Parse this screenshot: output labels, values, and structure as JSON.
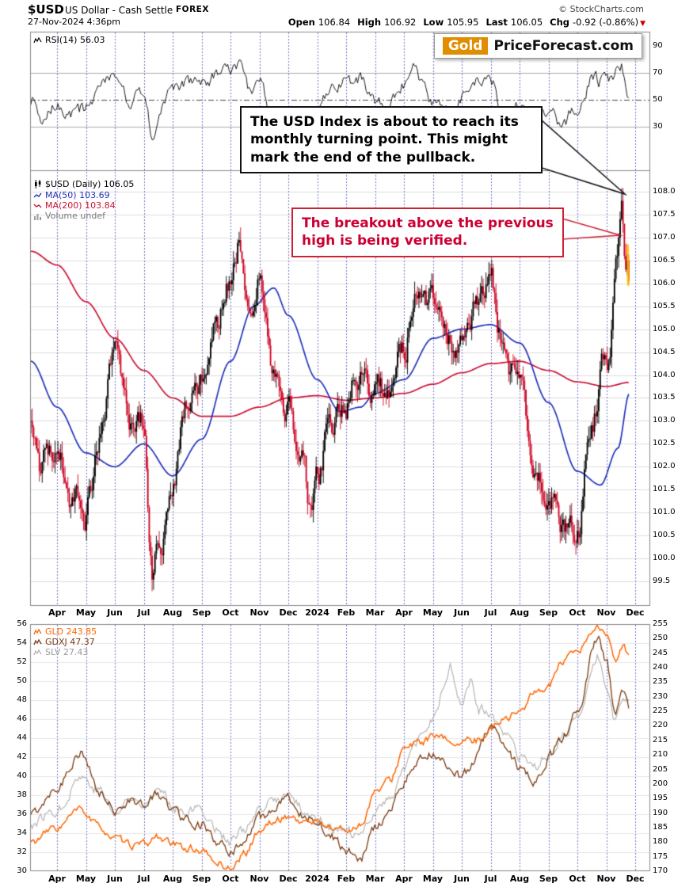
{
  "header": {
    "symbol": "$USD",
    "name": "US Dollar - Cash Settle",
    "exchange": "FOREX",
    "datetime": "27-Nov-2024 4:36pm",
    "copyright": "© StockCharts.com",
    "quote": [
      {
        "label": "Open",
        "value": "106.84"
      },
      {
        "label": "High",
        "value": "106.92"
      },
      {
        "label": "Low",
        "value": "105.95"
      },
      {
        "label": "Last",
        "value": "106.05"
      },
      {
        "label": "Chg",
        "value": "-0.92 (-0.86%)",
        "dir": "down"
      }
    ]
  },
  "logo": {
    "gold": "Gold",
    "site": "PriceForecast.com"
  },
  "panels": {
    "rsi_label": "RSI(14) 56.03",
    "main": {
      "symbol_line": "$USD (Daily) 106.05",
      "ma50_line": "MA(50) 103.69",
      "ma200_line": "MA(200) 103.84",
      "volume_line": "Volume undef"
    },
    "lower": {
      "gld_line": "GLD 243.85",
      "gdxj_line": "GDXJ 47.37",
      "slv_line": "SLV 27.43"
    }
  },
  "annotations": [
    {
      "text": "The USD Index is about to reach its monthly turning point. This might mark the end of the pullback.",
      "color": "#000000"
    },
    {
      "text": "The breakout above the previous high is being verified.",
      "color": "#cc0033"
    }
  ],
  "chart_data": {
    "type": "candlestick",
    "title": "$USD US Dollar - Cash Settle (Daily) with RSI(14) and GLD/GDXJ/SLV lower panel",
    "months": [
      "Apr",
      "May",
      "Jun",
      "Jul",
      "Aug",
      "Sep",
      "Oct",
      "Nov",
      "Dec",
      "2024",
      "Feb",
      "Mar",
      "Apr",
      "May",
      "Jun",
      "Jul",
      "Aug",
      "Sep",
      "Oct",
      "Nov",
      "Dec"
    ],
    "price_ticks": [
      "99.5",
      "100.0",
      "100.5",
      "101.0",
      "101.5",
      "102.0",
      "102.5",
      "103.0",
      "103.5",
      "104.0",
      "104.5",
      "105.0",
      "105.5",
      "106.0",
      "106.5",
      "107.0",
      "107.5",
      "108.0"
    ],
    "rsi_ticks": [
      "90",
      "70",
      "50",
      "30"
    ],
    "lower_left_ticks": [
      "30",
      "32",
      "34",
      "36",
      "38",
      "40",
      "42",
      "44",
      "46",
      "48",
      "50",
      "52",
      "54",
      "56"
    ],
    "lower_right_ticks": [
      "170",
      "175",
      "180",
      "185",
      "190",
      "195",
      "200",
      "205",
      "210",
      "215",
      "220",
      "225",
      "230",
      "235",
      "240",
      "245",
      "250",
      "255"
    ],
    "price_ylim": [
      99.5,
      108.0
    ],
    "rsi_levels": [
      30,
      50,
      70
    ],
    "ohlc_last": {
      "open": 106.84,
      "high": 106.92,
      "low": 105.95,
      "last": 106.05,
      "chg_pct": -0.86
    },
    "series": {
      "usd": {
        "name": "$USD close (est. anchors, t=months since Apr-2023)",
        "anchors": [
          [
            -0.9,
            103.2
          ],
          [
            -0.5,
            102.1
          ],
          [
            0,
            102.5
          ],
          [
            0.5,
            101.5
          ],
          [
            1,
            101.2
          ],
          [
            1.5,
            102.7
          ],
          [
            2,
            104.2
          ],
          [
            2.5,
            103.0
          ],
          [
            3,
            102.9
          ],
          [
            3.3,
            99.8
          ],
          [
            3.6,
            100.5
          ],
          [
            4,
            101.8
          ],
          [
            4.5,
            103.3
          ],
          [
            5,
            104.0
          ],
          [
            5.5,
            105.2
          ],
          [
            6,
            106.2
          ],
          [
            6.3,
            107.0
          ],
          [
            6.6,
            105.9
          ],
          [
            7,
            106.4
          ],
          [
            7.5,
            103.9
          ],
          [
            8,
            103.4
          ],
          [
            8.5,
            102.3
          ],
          [
            8.8,
            100.9
          ],
          [
            9,
            101.4
          ],
          [
            9.5,
            102.9
          ],
          [
            10,
            103.5
          ],
          [
            10.5,
            104.2
          ],
          [
            11,
            103.8
          ],
          [
            11.5,
            103.4
          ],
          [
            12,
            104.4
          ],
          [
            12.4,
            106.0
          ],
          [
            13,
            105.6
          ],
          [
            13.5,
            104.7
          ],
          [
            14,
            104.7
          ],
          [
            14.5,
            105.4
          ],
          [
            15,
            105.8
          ],
          [
            15.5,
            104.3
          ],
          [
            16,
            103.9
          ],
          [
            16.5,
            101.9
          ],
          [
            17,
            101.7
          ],
          [
            17.5,
            100.7
          ],
          [
            18,
            100.8
          ],
          [
            18.5,
            103.3
          ],
          [
            19,
            104.3
          ],
          [
            19.5,
            106.8
          ],
          [
            19.8,
            106.2
          ]
        ]
      },
      "ma50": {
        "name": "MA(50) 103.69",
        "color": "#2233bb",
        "anchors": [
          [
            -0.9,
            104.3
          ],
          [
            0,
            103.3
          ],
          [
            1,
            102.3
          ],
          [
            2,
            102.0
          ],
          [
            3,
            102.5
          ],
          [
            4,
            101.8
          ],
          [
            5,
            102.6
          ],
          [
            6,
            104.3
          ],
          [
            6.8,
            105.5
          ],
          [
            7.5,
            105.9
          ],
          [
            8,
            105.3
          ],
          [
            9,
            103.9
          ],
          [
            9.8,
            103.2
          ],
          [
            10.5,
            103.3
          ],
          [
            11,
            103.6
          ],
          [
            12,
            103.9
          ],
          [
            13,
            104.8
          ],
          [
            14,
            105.0
          ],
          [
            15,
            105.1
          ],
          [
            16,
            104.7
          ],
          [
            17,
            103.4
          ],
          [
            18,
            101.9
          ],
          [
            18.8,
            101.6
          ],
          [
            19.4,
            102.4
          ],
          [
            19.8,
            103.6
          ]
        ]
      },
      "ma200": {
        "name": "MA(200) 103.84",
        "color": "#cc1133",
        "anchors": [
          [
            -0.9,
            106.7
          ],
          [
            0,
            106.4
          ],
          [
            1,
            105.6
          ],
          [
            2,
            104.8
          ],
          [
            3,
            104.1
          ],
          [
            4,
            103.5
          ],
          [
            5,
            103.1
          ],
          [
            6,
            103.1
          ],
          [
            7,
            103.3
          ],
          [
            8,
            103.5
          ],
          [
            9,
            103.55
          ],
          [
            10,
            103.45
          ],
          [
            11,
            103.5
          ],
          [
            12,
            103.6
          ],
          [
            13,
            103.8
          ],
          [
            14,
            104.05
          ],
          [
            15,
            104.25
          ],
          [
            16,
            104.3
          ],
          [
            17,
            104.1
          ],
          [
            18,
            103.85
          ],
          [
            19,
            103.75
          ],
          [
            19.8,
            103.84
          ]
        ]
      },
      "rsi": {
        "name": "RSI(14) 56.03",
        "anchors": [
          [
            -0.9,
            50
          ],
          [
            -0.5,
            38
          ],
          [
            0,
            48
          ],
          [
            0.5,
            40
          ],
          [
            1,
            44
          ],
          [
            1.5,
            62
          ],
          [
            2,
            66
          ],
          [
            2.5,
            50
          ],
          [
            3,
            55
          ],
          [
            3.3,
            22
          ],
          [
            3.7,
            45
          ],
          [
            4,
            58
          ],
          [
            4.5,
            62
          ],
          [
            5,
            63
          ],
          [
            5.5,
            68
          ],
          [
            6,
            70
          ],
          [
            6.3,
            74
          ],
          [
            6.6,
            58
          ],
          [
            7,
            62
          ],
          [
            7.5,
            35
          ],
          [
            8,
            42
          ],
          [
            8.5,
            33
          ],
          [
            8.8,
            30
          ],
          [
            9,
            38
          ],
          [
            9.5,
            60
          ],
          [
            10,
            62
          ],
          [
            10.5,
            66
          ],
          [
            11,
            48
          ],
          [
            11.5,
            45
          ],
          [
            12,
            62
          ],
          [
            12.3,
            73
          ],
          [
            13,
            50
          ],
          [
            13.5,
            42
          ],
          [
            14,
            52
          ],
          [
            14.5,
            63
          ],
          [
            15,
            62
          ],
          [
            15.5,
            38
          ],
          [
            16,
            45
          ],
          [
            16.5,
            30
          ],
          [
            17,
            40
          ],
          [
            17.5,
            33
          ],
          [
            18,
            45
          ],
          [
            18.5,
            65
          ],
          [
            19,
            62
          ],
          [
            19.5,
            74
          ],
          [
            19.8,
            56
          ]
        ]
      },
      "gld": {
        "name": "GLD 243.85 (right axis)",
        "color": "#ff6600",
        "anchors": [
          [
            -0.9,
            180
          ],
          [
            0,
            185
          ],
          [
            0.8,
            191
          ],
          [
            1.5,
            185
          ],
          [
            2,
            181
          ],
          [
            2.5,
            179
          ],
          [
            3,
            179
          ],
          [
            3.5,
            182
          ],
          [
            4,
            179
          ],
          [
            4.5,
            178
          ],
          [
            5,
            177
          ],
          [
            5.5,
            173
          ],
          [
            6,
            171
          ],
          [
            6.5,
            176
          ],
          [
            7,
            184
          ],
          [
            7.5,
            187
          ],
          [
            8,
            189
          ],
          [
            8.5,
            187
          ],
          [
            9,
            187
          ],
          [
            9.5,
            185
          ],
          [
            10,
            184
          ],
          [
            10.5,
            186
          ],
          [
            11,
            197
          ],
          [
            11.5,
            201
          ],
          [
            12,
            212
          ],
          [
            12.5,
            214
          ],
          [
            13,
            216
          ],
          [
            13.5,
            215
          ],
          [
            14,
            214
          ],
          [
            14.5,
            215
          ],
          [
            15,
            219
          ],
          [
            15.5,
            223
          ],
          [
            16,
            225
          ],
          [
            16.5,
            231
          ],
          [
            17,
            234
          ],
          [
            17.5,
            242
          ],
          [
            18,
            245
          ],
          [
            18.7,
            254
          ],
          [
            19,
            251
          ],
          [
            19.3,
            242
          ],
          [
            19.6,
            247
          ],
          [
            19.8,
            243.85
          ]
        ]
      },
      "gdxj": {
        "name": "GDXJ 47.37 (left axis)",
        "color": "#7a3a10",
        "anchors": [
          [
            -0.9,
            36
          ],
          [
            0,
            39
          ],
          [
            0.8,
            42.5
          ],
          [
            1.5,
            38
          ],
          [
            2,
            36.5
          ],
          [
            2.5,
            37.5
          ],
          [
            3,
            37
          ],
          [
            3.5,
            38
          ],
          [
            4,
            36.5
          ],
          [
            4.5,
            35.5
          ],
          [
            5,
            35
          ],
          [
            5.5,
            33
          ],
          [
            6,
            31.8
          ],
          [
            6.5,
            33.5
          ],
          [
            7,
            35.5
          ],
          [
            7.5,
            36.5
          ],
          [
            8,
            37.5
          ],
          [
            8.5,
            36
          ],
          [
            9,
            35.5
          ],
          [
            9.5,
            33.5
          ],
          [
            10,
            32
          ],
          [
            10.5,
            31.5
          ],
          [
            11,
            34.5
          ],
          [
            11.5,
            36
          ],
          [
            12,
            39.5
          ],
          [
            12.5,
            41.5
          ],
          [
            13,
            42.5
          ],
          [
            13.5,
            41
          ],
          [
            14,
            40
          ],
          [
            14.5,
            42
          ],
          [
            15,
            45.5
          ],
          [
            15.5,
            43
          ],
          [
            16,
            41
          ],
          [
            16.5,
            39.5
          ],
          [
            17,
            42
          ],
          [
            17.5,
            44
          ],
          [
            18,
            47
          ],
          [
            18.7,
            54.5
          ],
          [
            19,
            52
          ],
          [
            19.3,
            46.5
          ],
          [
            19.6,
            49
          ],
          [
            19.8,
            47.37
          ]
        ]
      },
      "slv": {
        "name": "SLV 27.43 (plotted, left-axis units)",
        "color": "#b5b5b5",
        "anchors": [
          [
            -0.9,
            35
          ],
          [
            0,
            36.5
          ],
          [
            0.8,
            40
          ],
          [
            1.5,
            38.5
          ],
          [
            2,
            36
          ],
          [
            2.5,
            37.5
          ],
          [
            3,
            37.5
          ],
          [
            3.5,
            38.5
          ],
          [
            4,
            37
          ],
          [
            4.5,
            36.5
          ],
          [
            5,
            36.5
          ],
          [
            5.5,
            34.5
          ],
          [
            6,
            33
          ],
          [
            6.5,
            34.5
          ],
          [
            7,
            36
          ],
          [
            7.5,
            37.5
          ],
          [
            8,
            38
          ],
          [
            8.5,
            36.5
          ],
          [
            9,
            35.5
          ],
          [
            10,
            34
          ],
          [
            10.5,
            33.5
          ],
          [
            11,
            36.5
          ],
          [
            11.5,
            37.5
          ],
          [
            12,
            41
          ],
          [
            12.5,
            43.5
          ],
          [
            13,
            46
          ],
          [
            13.3,
            48.5
          ],
          [
            13.6,
            51.5
          ],
          [
            14,
            47.5
          ],
          [
            14.3,
            50
          ],
          [
            14.6,
            47
          ],
          [
            15,
            46.5
          ],
          [
            15.5,
            44
          ],
          [
            16,
            42
          ],
          [
            16.5,
            40.5
          ],
          [
            17,
            42.5
          ],
          [
            17.5,
            44.5
          ],
          [
            18,
            46
          ],
          [
            18.7,
            52.5
          ],
          [
            19,
            50
          ],
          [
            19.3,
            46
          ],
          [
            19.6,
            48
          ],
          [
            19.8,
            47.5
          ]
        ]
      }
    }
  }
}
